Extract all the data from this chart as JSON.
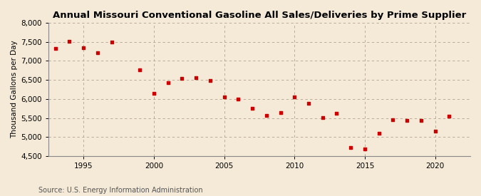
{
  "title": "Annual Missouri Conventional Gasoline All Sales/Deliveries by Prime Supplier",
  "ylabel": "Thousand Gallons per Day",
  "source": "Source: U.S. Energy Information Administration",
  "background_color": "#f5ead8",
  "marker_color": "#cc0000",
  "grid_color": "#b0a090",
  "years": [
    1993,
    1994,
    1995,
    1996,
    1997,
    1999,
    2000,
    2001,
    2002,
    2003,
    2004,
    2005,
    2006,
    2007,
    2008,
    2009,
    2010,
    2011,
    2012,
    2013,
    2014,
    2015,
    2016,
    2017,
    2018,
    2019,
    2020,
    2021
  ],
  "values": [
    7330,
    7510,
    7350,
    7210,
    7500,
    6760,
    6150,
    6430,
    6540,
    6560,
    6490,
    6060,
    5990,
    5750,
    5560,
    5640,
    6060,
    5890,
    5510,
    5630,
    4730,
    4680,
    5100,
    5450,
    5430,
    5440,
    5160,
    5550
  ],
  "ylim": [
    4500,
    8000
  ],
  "yticks": [
    4500,
    5000,
    5500,
    6000,
    6500,
    7000,
    7500,
    8000
  ],
  "xlim": [
    1992.5,
    2022.5
  ],
  "xticks": [
    1995,
    2000,
    2005,
    2010,
    2015,
    2020
  ],
  "title_fontsize": 9.5,
  "ylabel_fontsize": 7.5,
  "tick_fontsize": 7.5,
  "source_fontsize": 7.0,
  "marker_size": 12
}
